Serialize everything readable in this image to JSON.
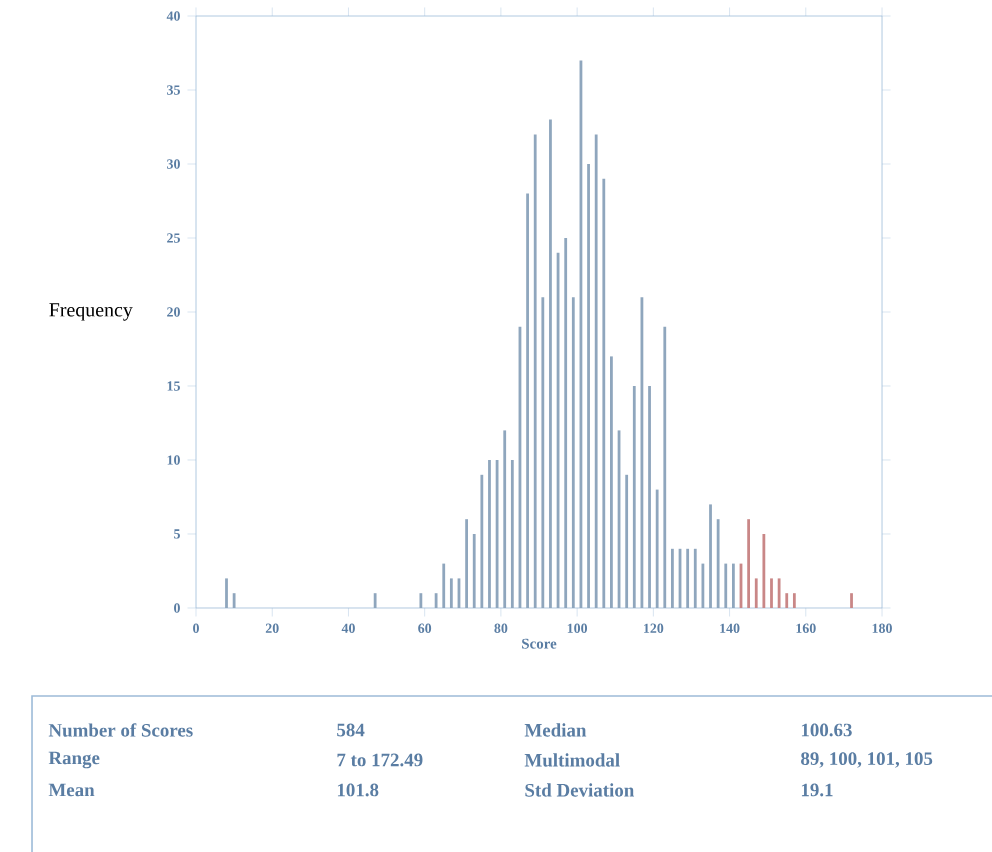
{
  "chart_data": {
    "type": "bar",
    "xlabel": "Score",
    "ylabel": "Frequency",
    "x": [
      8,
      10,
      47,
      59,
      63,
      65,
      67,
      69,
      71,
      73,
      75,
      77,
      79,
      81,
      83,
      85,
      87,
      89,
      91,
      93,
      95,
      97,
      99,
      101,
      103,
      105,
      107,
      109,
      111,
      113,
      115,
      117,
      119,
      121,
      123,
      125,
      127,
      129,
      131,
      133,
      135,
      137,
      139,
      141,
      143,
      145,
      147,
      149,
      151,
      153,
      155,
      157,
      172
    ],
    "values": [
      2,
      1,
      1,
      1,
      1,
      3,
      2,
      2,
      6,
      5,
      9,
      10,
      10,
      12,
      10,
      19,
      28,
      32,
      21,
      33,
      24,
      25,
      21,
      37,
      30,
      32,
      29,
      17,
      12,
      9,
      15,
      21,
      15,
      8,
      19,
      4,
      4,
      4,
      4,
      3,
      7,
      6,
      3,
      3,
      3,
      6,
      2,
      5,
      2,
      2,
      1,
      1,
      1
    ],
    "colors": [
      "#8fa6bd",
      "#8fa6bd",
      "#8fa6bd",
      "#8fa6bd",
      "#8fa6bd",
      "#8fa6bd",
      "#8fa6bd",
      "#8fa6bd",
      "#8fa6bd",
      "#8fa6bd",
      "#8fa6bd",
      "#8fa6bd",
      "#8fa6bd",
      "#8fa6bd",
      "#8fa6bd",
      "#8fa6bd",
      "#8fa6bd",
      "#8fa6bd",
      "#8fa6bd",
      "#8fa6bd",
      "#8fa6bd",
      "#8fa6bd",
      "#8fa6bd",
      "#8fa6bd",
      "#8fa6bd",
      "#8fa6bd",
      "#8fa6bd",
      "#8fa6bd",
      "#8fa6bd",
      "#8fa6bd",
      "#8fa6bd",
      "#8fa6bd",
      "#8fa6bd",
      "#8fa6bd",
      "#8fa6bd",
      "#8fa6bd",
      "#8fa6bd",
      "#8fa6bd",
      "#8fa6bd",
      "#8fa6bd",
      "#8fa6bd",
      "#8fa6bd",
      "#8fa6bd",
      "#8fa6bd",
      "#c98787",
      "#c98787",
      "#c98787",
      "#c98787",
      "#c98787",
      "#c98787",
      "#c98787",
      "#c98787",
      "#c98787"
    ],
    "xlim": [
      0,
      180
    ],
    "ylim": [
      0,
      40
    ],
    "xticks": [
      0,
      20,
      40,
      60,
      80,
      100,
      120,
      140,
      160,
      180
    ],
    "yticks": [
      0,
      5,
      10,
      15,
      20,
      25,
      30,
      35,
      40
    ],
    "annotations": [
      "Number of Scores",
      "584",
      "Median",
      "100.63",
      "Range",
      "7 to 172.49",
      "Multimodal",
      "89, 100, 101, 105",
      "Mean",
      "101.8",
      "Std Deviation",
      "19.1"
    ]
  }
}
